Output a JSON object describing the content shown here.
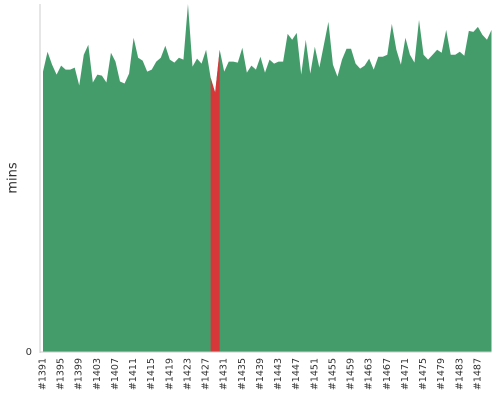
{
  "chart_data": {
    "type": "area",
    "y_label": "mins",
    "categories": [
      "#1391",
      null,
      null,
      null,
      "#1395",
      null,
      null,
      null,
      "#1399",
      null,
      null,
      null,
      "#1403",
      null,
      null,
      null,
      "#1407",
      null,
      null,
      null,
      "#1411",
      null,
      null,
      null,
      "#1415",
      null,
      null,
      null,
      "#1419",
      null,
      null,
      null,
      "#1423",
      null,
      null,
      null,
      "#1427",
      null,
      null,
      null,
      "#1431",
      null,
      null,
      null,
      "#1435",
      null,
      null,
      null,
      "#1439",
      null,
      null,
      null,
      "#1443",
      null,
      null,
      null,
      "#1447",
      null,
      null,
      null,
      "#1451",
      null,
      null,
      null,
      "#1455",
      null,
      null,
      null,
      "#1459",
      null,
      null,
      null,
      "#1463",
      null,
      null,
      null,
      "#1467",
      null,
      null,
      null,
      "#1471",
      null,
      null,
      null,
      "#1475",
      null,
      null,
      null,
      "#1479",
      null,
      null,
      null,
      "#1483",
      null,
      null,
      null,
      "#1487",
      null,
      null,
      null
    ],
    "values": [
      28.2,
      30.2,
      28.9,
      27.9,
      28.8,
      28.4,
      28.4,
      28.6,
      26.8,
      29.9,
      30.9,
      27.1,
      27.9,
      27.8,
      27.1,
      30.1,
      29.2,
      27.2,
      27.0,
      28.0,
      31.6,
      29.6,
      29.3,
      28.2,
      28.4,
      29.2,
      29.6,
      30.8,
      29.4,
      29.1,
      29.6,
      29.4,
      35.0,
      28.7,
      29.5,
      29.0,
      30.4,
      27.6,
      26.1,
      30.4,
      28.2,
      29.2,
      29.2,
      29.1,
      30.6,
      28.1,
      28.8,
      28.4,
      29.7,
      28.1,
      29.4,
      29.0,
      29.2,
      29.2,
      32.0,
      31.4,
      32.1,
      27.9,
      31.4,
      28.0,
      30.7,
      28.6,
      30.9,
      33.2,
      28.9,
      27.7,
      29.4,
      30.5,
      30.5,
      29.0,
      28.5,
      28.8,
      29.5,
      28.4,
      29.7,
      29.7,
      29.9,
      33.0,
      30.4,
      28.9,
      31.6,
      29.9,
      29.1,
      33.4,
      29.9,
      29.4,
      29.9,
      30.4,
      30.1,
      32.4,
      29.9,
      29.9,
      30.2,
      29.8,
      32.3,
      32.2,
      32.7,
      31.9,
      31.4,
      32.4
    ],
    "color": "#459c6b",
    "point_colors": [
      "#459c6b",
      "#459c6b",
      "#459c6b",
      "#459c6b",
      "#459c6b",
      "#459c6b",
      "#459c6b",
      "#459c6b",
      "#459c6b",
      "#459c6b",
      "#459c6b",
      "#459c6b",
      "#459c6b",
      "#459c6b",
      "#459c6b",
      "#459c6b",
      "#459c6b",
      "#459c6b",
      "#459c6b",
      "#459c6b",
      "#459c6b",
      "#459c6b",
      "#459c6b",
      "#459c6b",
      "#459c6b",
      "#459c6b",
      "#459c6b",
      "#459c6b",
      "#459c6b",
      "#459c6b",
      "#459c6b",
      "#459c6b",
      "#459c6b",
      "#459c6b",
      "#459c6b",
      "#459c6b",
      "#459c6b",
      "#459c6b",
      "#d6383a",
      "#459c6b",
      "#459c6b",
      "#459c6b",
      "#459c6b",
      "#459c6b",
      "#459c6b",
      "#459c6b",
      "#459c6b",
      "#459c6b",
      "#459c6b",
      "#459c6b",
      "#459c6b",
      "#459c6b",
      "#459c6b",
      "#459c6b",
      "#459c6b",
      "#459c6b",
      "#459c6b",
      "#459c6b",
      "#459c6b",
      "#459c6b",
      "#459c6b",
      "#459c6b",
      "#459c6b",
      "#459c6b",
      "#459c6b",
      "#459c6b",
      "#459c6b",
      "#459c6b",
      "#459c6b",
      "#459c6b",
      "#459c6b",
      "#459c6b",
      "#459c6b",
      "#459c6b",
      "#459c6b",
      "#459c6b",
      "#459c6b",
      "#459c6b",
      "#459c6b",
      "#459c6b",
      "#459c6b",
      "#459c6b",
      "#459c6b",
      "#459c6b",
      "#459c6b",
      "#459c6b",
      "#459c6b",
      "#459c6b",
      "#459c6b",
      "#459c6b",
      "#459c6b",
      "#459c6b",
      "#459c6b",
      "#459c6b",
      "#459c6b",
      "#459c6b",
      "#459c6b",
      "#459c6b",
      "#459c6b",
      "#459c6b"
    ],
    "ylim": [
      0,
      35
    ],
    "yticks": [
      0
    ]
  }
}
